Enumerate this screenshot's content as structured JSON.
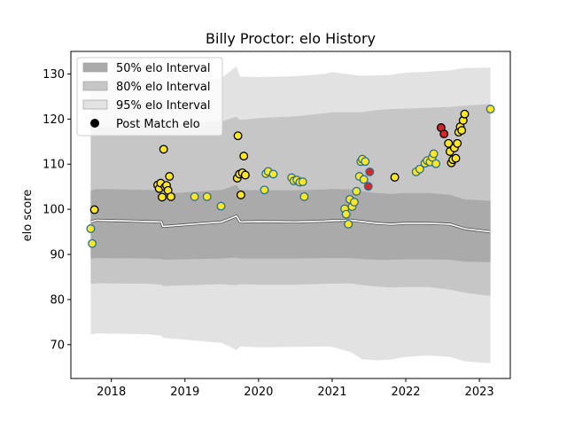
{
  "chart_data": {
    "type": "scatter",
    "title": "Billy Proctor: elo History",
    "xlabel": "",
    "ylabel": "elo score",
    "xlim": [
      2017.45,
      2023.42
    ],
    "ylim": [
      62.5,
      135
    ],
    "x_ticks": [
      2018,
      2019,
      2020,
      2021,
      2022,
      2023
    ],
    "x_tick_labels": [
      "2018",
      "2019",
      "2020",
      "2021",
      "2022",
      "2023"
    ],
    "y_ticks": [
      70,
      80,
      90,
      100,
      110,
      120,
      130
    ],
    "y_tick_labels": [
      "70",
      "80",
      "90",
      "100",
      "110",
      "120",
      "130"
    ],
    "legend_position": "top-left",
    "legend": [
      {
        "label": "50% elo Interval",
        "kind": "band",
        "color": "#aaaaaa"
      },
      {
        "label": "80% elo Interval",
        "kind": "band",
        "color": "#c6c6c6"
      },
      {
        "label": "95% elo Interval",
        "kind": "band",
        "color": "#e2e2e2"
      },
      {
        "label": "Post Match elo",
        "kind": "marker",
        "color": "#000000"
      }
    ],
    "band_x": [
      2017.72,
      2017.8,
      2018.5,
      2018.68,
      2018.7,
      2019.5,
      2019.7,
      2019.75,
      2020.0,
      2020.5,
      2020.9,
      2021.0,
      2021.25,
      2021.4,
      2021.6,
      2021.8,
      2022.0,
      2022.3,
      2022.6,
      2022.8,
      2023.15
    ],
    "median_line": [
      97.2,
      97.6,
      97.3,
      97.2,
      96.2,
      97.2,
      98.5,
      97.2,
      97.3,
      97.2,
      97.4,
      97.5,
      97.6,
      97.3,
      96.9,
      96.7,
      96.9,
      96.9,
      96.7,
      95.7,
      95.0
    ],
    "interval_50": {
      "lower": [
        89.1,
        89.2,
        89.1,
        89.0,
        88.8,
        89.1,
        89.3,
        89.1,
        89.1,
        89.1,
        89.2,
        89.2,
        89.2,
        89.0,
        88.8,
        88.8,
        88.9,
        88.9,
        88.8,
        88.4,
        88.3
      ],
      "upper": [
        104.1,
        104.5,
        104.3,
        104.1,
        103.4,
        104.3,
        105.4,
        104.3,
        104.2,
        104.2,
        104.4,
        104.5,
        104.4,
        104.0,
        103.6,
        103.4,
        103.6,
        103.6,
        103.2,
        102.2,
        101.9
      ]
    },
    "interval_80": {
      "lower": [
        83.5,
        83.6,
        83.5,
        83.3,
        83.0,
        83.4,
        83.2,
        83.4,
        83.3,
        83.3,
        83.5,
        83.5,
        83.6,
        83.2,
        82.9,
        82.7,
        82.8,
        82.8,
        82.2,
        81.5,
        80.8
      ],
      "upper": [
        118.0,
        118.2,
        118.4,
        118.5,
        118.6,
        119.5,
        120.5,
        119.8,
        120.2,
        120.6,
        121.3,
        121.5,
        121.5,
        121.5,
        122.0,
        122.2,
        122.3,
        122.5,
        122.7,
        123.0,
        123.3
      ]
    },
    "interval_95": {
      "lower": [
        72.3,
        72.5,
        72.3,
        72.0,
        71.5,
        70.4,
        68.8,
        69.6,
        69.4,
        69.5,
        69.6,
        69.5,
        68.4,
        66.8,
        66.5,
        66.7,
        67.3,
        67.6,
        67.3,
        66.3,
        65.9
      ],
      "upper": [
        128.1,
        128.7,
        128.7,
        128.5,
        127.3,
        129.1,
        131.7,
        129.4,
        129.3,
        129.5,
        130.0,
        130.4,
        129.9,
        129.6,
        129.7,
        129.8,
        130.3,
        130.5,
        130.8,
        131.3,
        131.4
      ]
    },
    "points": [
      {
        "x": 2017.72,
        "y": 95.7,
        "fill": "#fde725",
        "edge": "#2a6f8f"
      },
      {
        "x": 2017.74,
        "y": 92.4,
        "fill": "#fde725",
        "edge": "#2a6f8f"
      },
      {
        "x": 2017.77,
        "y": 99.9,
        "fill": "#fde725",
        "edge": "#000000"
      },
      {
        "x": 2018.63,
        "y": 105.4,
        "fill": "#fde725",
        "edge": "#000000"
      },
      {
        "x": 2018.65,
        "y": 104.6,
        "fill": "#fde725",
        "edge": "#000000"
      },
      {
        "x": 2018.67,
        "y": 105.8,
        "fill": "#fde725",
        "edge": "#000000"
      },
      {
        "x": 2018.69,
        "y": 102.7,
        "fill": "#fde725",
        "edge": "#000000"
      },
      {
        "x": 2018.71,
        "y": 113.3,
        "fill": "#fde725",
        "edge": "#000000"
      },
      {
        "x": 2018.73,
        "y": 105.0,
        "fill": "#fde725",
        "edge": "#000000"
      },
      {
        "x": 2018.75,
        "y": 105.3,
        "fill": "#fde725",
        "edge": "#000000"
      },
      {
        "x": 2018.77,
        "y": 104.2,
        "fill": "#fde725",
        "edge": "#000000"
      },
      {
        "x": 2018.79,
        "y": 107.3,
        "fill": "#fde725",
        "edge": "#000000"
      },
      {
        "x": 2018.81,
        "y": 102.8,
        "fill": "#fde725",
        "edge": "#000000"
      },
      {
        "x": 2019.13,
        "y": 102.8,
        "fill": "#fde725",
        "edge": "#2a6f8f"
      },
      {
        "x": 2019.3,
        "y": 102.8,
        "fill": "#fde725",
        "edge": "#2a6f8f"
      },
      {
        "x": 2019.49,
        "y": 100.7,
        "fill": "#fde725",
        "edge": "#2a6f8f"
      },
      {
        "x": 2019.71,
        "y": 106.9,
        "fill": "#fde725",
        "edge": "#000000"
      },
      {
        "x": 2019.72,
        "y": 116.3,
        "fill": "#fde725",
        "edge": "#000000"
      },
      {
        "x": 2019.74,
        "y": 107.8,
        "fill": "#fde725",
        "edge": "#000000"
      },
      {
        "x": 2019.76,
        "y": 103.2,
        "fill": "#fde725",
        "edge": "#000000"
      },
      {
        "x": 2019.78,
        "y": 108.1,
        "fill": "#fde725",
        "edge": "#000000"
      },
      {
        "x": 2019.8,
        "y": 111.8,
        "fill": "#fde725",
        "edge": "#000000"
      },
      {
        "x": 2019.82,
        "y": 107.6,
        "fill": "#fde725",
        "edge": "#000000"
      },
      {
        "x": 2020.08,
        "y": 104.3,
        "fill": "#fde725",
        "edge": "#2a6f8f"
      },
      {
        "x": 2020.1,
        "y": 107.9,
        "fill": "#fde725",
        "edge": "#2a6f8f"
      },
      {
        "x": 2020.13,
        "y": 108.4,
        "fill": "#fde725",
        "edge": "#2a6f8f"
      },
      {
        "x": 2020.2,
        "y": 107.8,
        "fill": "#fde725",
        "edge": "#2a6f8f"
      },
      {
        "x": 2020.45,
        "y": 107.0,
        "fill": "#fde725",
        "edge": "#2a6f8f"
      },
      {
        "x": 2020.48,
        "y": 106.3,
        "fill": "#fde725",
        "edge": "#2a6f8f"
      },
      {
        "x": 2020.52,
        "y": 106.5,
        "fill": "#fde725",
        "edge": "#2a6f8f"
      },
      {
        "x": 2020.56,
        "y": 106.0,
        "fill": "#fde725",
        "edge": "#2a6f8f"
      },
      {
        "x": 2020.6,
        "y": 106.1,
        "fill": "#fde725",
        "edge": "#2a6f8f"
      },
      {
        "x": 2020.62,
        "y": 102.8,
        "fill": "#fde725",
        "edge": "#2a6f8f"
      },
      {
        "x": 2021.17,
        "y": 100.1,
        "fill": "#fde725",
        "edge": "#2a6f8f"
      },
      {
        "x": 2021.19,
        "y": 98.9,
        "fill": "#fde725",
        "edge": "#2a6f8f"
      },
      {
        "x": 2021.22,
        "y": 96.7,
        "fill": "#fde725",
        "edge": "#2a6f8f"
      },
      {
        "x": 2021.24,
        "y": 102.2,
        "fill": "#fde725",
        "edge": "#2a6f8f"
      },
      {
        "x": 2021.27,
        "y": 100.6,
        "fill": "#fde725",
        "edge": "#2a6f8f"
      },
      {
        "x": 2021.3,
        "y": 101.6,
        "fill": "#fde725",
        "edge": "#2a6f8f"
      },
      {
        "x": 2021.33,
        "y": 104.0,
        "fill": "#fde725",
        "edge": "#2a6f8f"
      },
      {
        "x": 2021.37,
        "y": 107.3,
        "fill": "#fde725",
        "edge": "#2a6f8f"
      },
      {
        "x": 2021.39,
        "y": 110.6,
        "fill": "#fde725",
        "edge": "#2a6f8f"
      },
      {
        "x": 2021.41,
        "y": 111.1,
        "fill": "#fde725",
        "edge": "#2a6f8f"
      },
      {
        "x": 2021.43,
        "y": 106.6,
        "fill": "#fde725",
        "edge": "#2a6f8f"
      },
      {
        "x": 2021.45,
        "y": 110.6,
        "fill": "#fde725",
        "edge": "#2a6f8f"
      },
      {
        "x": 2021.49,
        "y": 105.1,
        "fill": "#d62728",
        "edge": "#2a6f8f"
      },
      {
        "x": 2021.51,
        "y": 108.3,
        "fill": "#d62728",
        "edge": "#2a6f8f"
      },
      {
        "x": 2021.85,
        "y": 107.1,
        "fill": "#fde725",
        "edge": "#000000"
      },
      {
        "x": 2022.14,
        "y": 108.3,
        "fill": "#fde725",
        "edge": "#2a6f8f"
      },
      {
        "x": 2022.19,
        "y": 108.9,
        "fill": "#fde725",
        "edge": "#2a6f8f"
      },
      {
        "x": 2022.26,
        "y": 110.2,
        "fill": "#fde725",
        "edge": "#2a6f8f"
      },
      {
        "x": 2022.29,
        "y": 110.8,
        "fill": "#fde725",
        "edge": "#2a6f8f"
      },
      {
        "x": 2022.33,
        "y": 110.5,
        "fill": "#fde725",
        "edge": "#2a6f8f"
      },
      {
        "x": 2022.36,
        "y": 111.5,
        "fill": "#fde725",
        "edge": "#2a6f8f"
      },
      {
        "x": 2022.38,
        "y": 112.3,
        "fill": "#fde725",
        "edge": "#2a6f8f"
      },
      {
        "x": 2022.41,
        "y": 110.1,
        "fill": "#fde725",
        "edge": "#2a6f8f"
      },
      {
        "x": 2022.48,
        "y": 118.1,
        "fill": "#d62728",
        "edge": "#000000"
      },
      {
        "x": 2022.52,
        "y": 116.7,
        "fill": "#d62728",
        "edge": "#000000"
      },
      {
        "x": 2022.58,
        "y": 114.6,
        "fill": "#fde725",
        "edge": "#000000"
      },
      {
        "x": 2022.6,
        "y": 112.8,
        "fill": "#fde725",
        "edge": "#000000"
      },
      {
        "x": 2022.62,
        "y": 110.3,
        "fill": "#fde725",
        "edge": "#000000"
      },
      {
        "x": 2022.64,
        "y": 111.0,
        "fill": "#fde725",
        "edge": "#000000"
      },
      {
        "x": 2022.66,
        "y": 113.6,
        "fill": "#fde725",
        "edge": "#000000"
      },
      {
        "x": 2022.68,
        "y": 111.3,
        "fill": "#fde725",
        "edge": "#000000"
      },
      {
        "x": 2022.7,
        "y": 114.6,
        "fill": "#fde725",
        "edge": "#000000"
      },
      {
        "x": 2022.72,
        "y": 117.1,
        "fill": "#fde725",
        "edge": "#000000"
      },
      {
        "x": 2022.74,
        "y": 118.3,
        "fill": "#fde725",
        "edge": "#000000"
      },
      {
        "x": 2022.76,
        "y": 117.5,
        "fill": "#fde725",
        "edge": "#000000"
      },
      {
        "x": 2022.78,
        "y": 119.7,
        "fill": "#fde725",
        "edge": "#000000"
      },
      {
        "x": 2022.8,
        "y": 121.1,
        "fill": "#fde725",
        "edge": "#000000"
      },
      {
        "x": 2023.15,
        "y": 122.2,
        "fill": "#fde725",
        "edge": "#2a6f8f"
      }
    ]
  }
}
